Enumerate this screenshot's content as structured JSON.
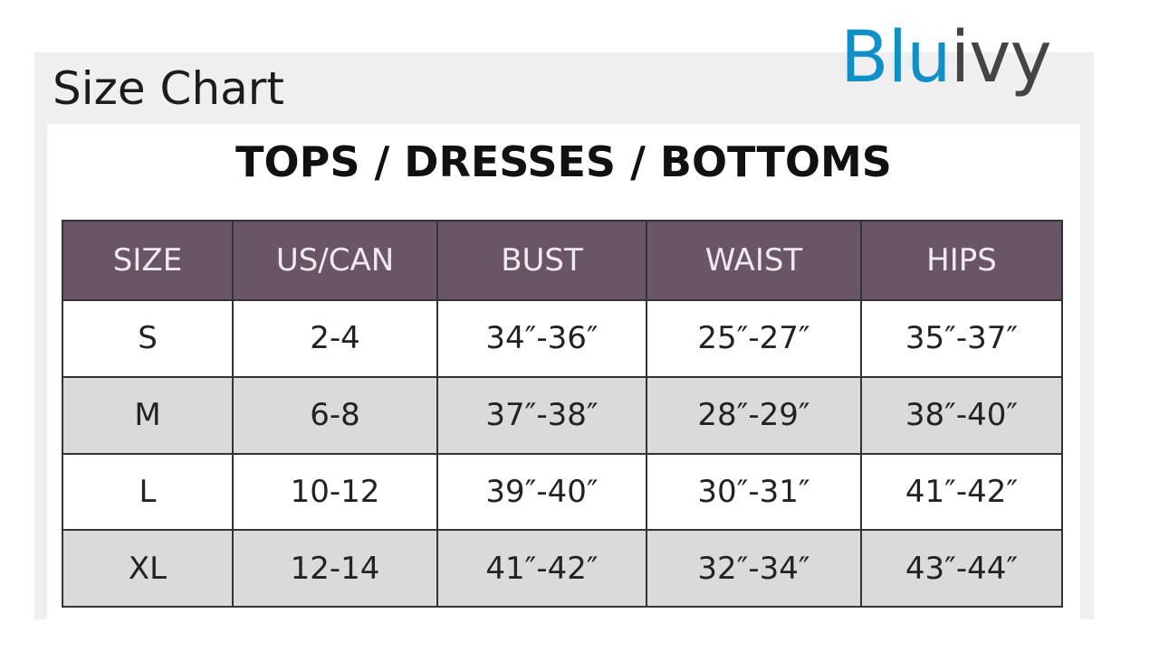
{
  "title": "Size Chart",
  "logo": {
    "part1": "Blu",
    "part2": "ivy",
    "colors": {
      "part1": "#1190c8",
      "part2": "#444444"
    }
  },
  "heading": "TOPS / DRESSES / BOTTOMS",
  "table": {
    "header_color": "#6a5566",
    "columns": [
      "SIZE",
      "US/CAN",
      "BUST",
      "WAIST",
      "HIPS"
    ],
    "rows": [
      [
        "S",
        "2-4",
        "34″-36″",
        "25″-27″",
        "35″-37″"
      ],
      [
        "M",
        "6-8",
        "37″-38″",
        "28″-29″",
        "38″-40″"
      ],
      [
        "L",
        "10-12",
        "39″-40″",
        "30″-31″",
        "41″-42″"
      ],
      [
        "XL",
        "12-14",
        "41″-42″",
        "32″-34″",
        "43″-44″"
      ]
    ]
  }
}
